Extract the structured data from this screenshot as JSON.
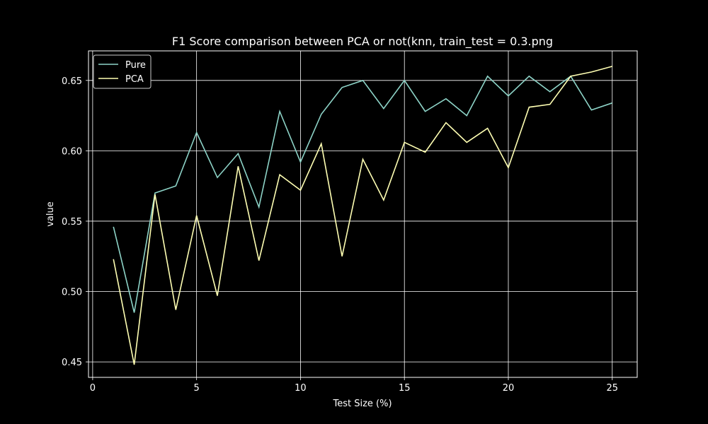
{
  "chart_data": {
    "type": "line",
    "title": "F1 Score comparison between PCA or not(knn, train_test = 0.3.png",
    "xlabel": "Test Size (%)",
    "ylabel": "value",
    "xlim": [
      -0.2,
      26.2
    ],
    "ylim": [
      0.439,
      0.671
    ],
    "xticks": [
      0,
      5,
      10,
      15,
      20,
      25
    ],
    "yticks": [
      0.45,
      0.5,
      0.55,
      0.6,
      0.65
    ],
    "ytick_labels": [
      "0.45",
      "0.50",
      "0.55",
      "0.60",
      "0.65"
    ],
    "grid": true,
    "legend_position": "top-left",
    "x": [
      1,
      2,
      3,
      4,
      5,
      6,
      7,
      8,
      9,
      10,
      11,
      12,
      13,
      14,
      15,
      16,
      17,
      18,
      19,
      20,
      21,
      22,
      23,
      24,
      25
    ],
    "series": [
      {
        "name": "Pure",
        "color": "#8dd3c7",
        "values": [
          0.546,
          0.485,
          0.57,
          0.575,
          0.613,
          0.581,
          0.598,
          0.56,
          0.628,
          0.592,
          0.626,
          0.645,
          0.65,
          0.63,
          0.65,
          0.628,
          0.637,
          0.625,
          0.653,
          0.639,
          0.653,
          0.642,
          0.653,
          0.629,
          0.634
        ]
      },
      {
        "name": "PCA",
        "color": "#ffffb3",
        "values": [
          0.523,
          0.448,
          0.569,
          0.487,
          0.554,
          0.497,
          0.589,
          0.522,
          0.583,
          0.572,
          0.605,
          0.525,
          0.594,
          0.565,
          0.606,
          0.599,
          0.62,
          0.606,
          0.616,
          0.588,
          0.631,
          0.633,
          0.653,
          0.656,
          0.66
        ]
      }
    ]
  }
}
